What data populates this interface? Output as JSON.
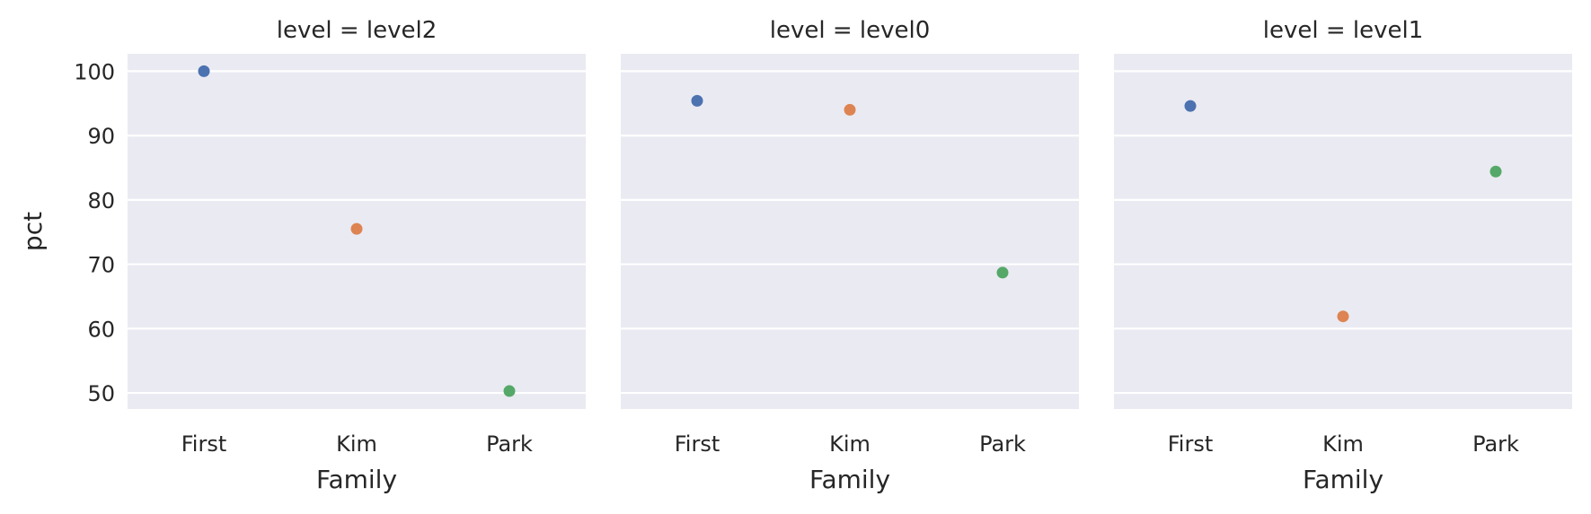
{
  "chart_data": {
    "type": "scatter",
    "ylabel": "pct",
    "xlabel": "Family",
    "categories": [
      "First",
      "Kim",
      "Park"
    ],
    "category_colors": [
      "#4c72b0",
      "#dd8452",
      "#55a868"
    ],
    "yticks": [
      50,
      60,
      70,
      80,
      90,
      100
    ],
    "ylim": [
      47.5,
      102.7
    ],
    "grid": true,
    "panels": [
      {
        "title": "level = level2",
        "values": [
          100,
          75.5,
          50.3
        ]
      },
      {
        "title": "level = level0",
        "values": [
          95.4,
          94.0,
          68.7
        ]
      },
      {
        "title": "level = level1",
        "values": [
          94.6,
          61.9,
          84.4
        ]
      }
    ]
  }
}
